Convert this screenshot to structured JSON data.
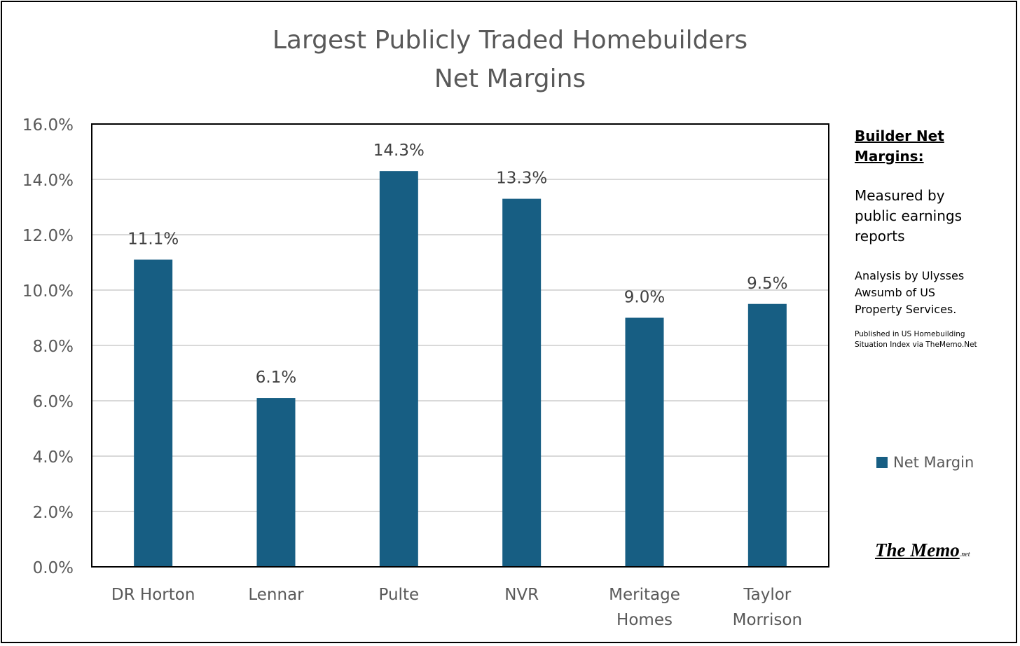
{
  "chart_data": {
    "type": "bar",
    "title": [
      "Largest Publicly Traded Homebuilders",
      "Net Margins"
    ],
    "categories": [
      "DR Horton",
      "Lennar",
      "Pulte",
      "NVR",
      "Meritage Homes",
      "Taylor Morrison"
    ],
    "category_lines": [
      [
        "DR Horton"
      ],
      [
        "Lennar"
      ],
      [
        "Pulte"
      ],
      [
        "NVR"
      ],
      [
        "Meritage",
        "Homes"
      ],
      [
        "Taylor",
        "Morrison"
      ]
    ],
    "series": [
      {
        "name": "Net Margin",
        "values": [
          11.1,
          6.1,
          14.3,
          13.3,
          9.0,
          9.5
        ],
        "color": "#175e83"
      }
    ],
    "data_labels": [
      "11.1%",
      "6.1%",
      "14.3%",
      "13.3%",
      "9.0%",
      "9.5%"
    ],
    "ylim": [
      0,
      16
    ],
    "yticks": [
      0,
      2,
      4,
      6,
      8,
      10,
      12,
      14,
      16
    ],
    "ytick_labels": [
      "0.0%",
      "2.0%",
      "4.0%",
      "6.0%",
      "8.0%",
      "10.0%",
      "12.0%",
      "14.0%",
      "16.0%"
    ],
    "xlabel": "",
    "ylabel": "",
    "grid": true,
    "legend_position": "right"
  },
  "notes": {
    "heading": [
      "Builder Net",
      "Margins:"
    ],
    "measured": [
      "Measured by",
      "public earnings",
      "reports"
    ],
    "analysis": [
      "Analysis by Ulysses",
      "Awsumb of US",
      "Property Services."
    ],
    "published": [
      "Published in US Homebuilding",
      "Situation Index via TheMemo.Net"
    ]
  },
  "logo": {
    "main": "The Memo",
    "suffix": ".net"
  },
  "colors": {
    "bar": "#175e83",
    "grid": "#d9d9d9",
    "axis_text": "#595959",
    "plot_border": "#000000"
  }
}
